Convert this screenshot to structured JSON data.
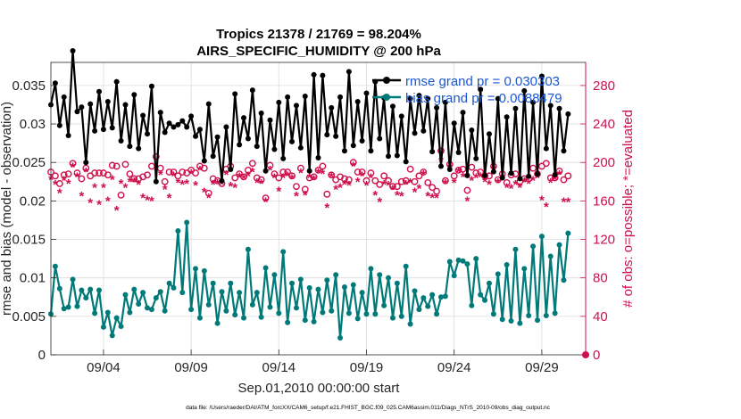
{
  "chart_data": {
    "type": "line",
    "title_line1": "Tropics 21378 / 21769 = 98.204%",
    "title_line2": "AIRS_SPECIFIC_HUMIDITY @ 200 hPa",
    "xlabel": "Sep.01,2010 00:00:00 start",
    "ylabel_left": "rmse and bias (model - observation)",
    "ylabel_right": "# of obs: o=possible; *=evaluated",
    "footnote": "data file: /Users/raeder/DAI/ATM_forcXX/CAM6_setup/f.e21.FHIST_BGC.f09_025.CAM6assim.011/Diags_NTrS_2010-09/obs_diag_output.nc",
    "xlim": [
      1,
      31.5
    ],
    "ylim_left": [
      0,
      0.038
    ],
    "ylim_right": [
      0,
      304
    ],
    "x_ticks": [
      {
        "x": 4,
        "label": "09/04"
      },
      {
        "x": 9,
        "label": "09/09"
      },
      {
        "x": 14,
        "label": "09/14"
      },
      {
        "x": 19,
        "label": "09/19"
      },
      {
        "x": 24,
        "label": "09/24"
      },
      {
        "x": 29,
        "label": "09/29"
      }
    ],
    "y_ticks_left": [
      {
        "v": 0,
        "label": "0"
      },
      {
        "v": 0.005,
        "label": "0.005"
      },
      {
        "v": 0.01,
        "label": "0.01"
      },
      {
        "v": 0.015,
        "label": "0.015"
      },
      {
        "v": 0.02,
        "label": "0.02"
      },
      {
        "v": 0.025,
        "label": "0.025"
      },
      {
        "v": 0.03,
        "label": "0.03"
      },
      {
        "v": 0.035,
        "label": "0.035"
      }
    ],
    "y_ticks_right": [
      {
        "v": 0,
        "label": "0"
      },
      {
        "v": 40,
        "label": "40"
      },
      {
        "v": 80,
        "label": "80"
      },
      {
        "v": 120,
        "label": "120"
      },
      {
        "v": 160,
        "label": "160"
      },
      {
        "v": 200,
        "label": "200"
      },
      {
        "v": 240,
        "label": "240"
      },
      {
        "v": 280,
        "label": "280"
      }
    ],
    "x_start": 1.0,
    "x_step": 0.25,
    "series": [
      {
        "name": "rmse grand pr = 0.030303",
        "color": "#000000",
        "axis": "left",
        "values": [
          0.0325,
          0.0353,
          0.0298,
          0.0335,
          0.0285,
          0.0395,
          0.0316,
          0.0322,
          0.025,
          0.0326,
          0.0291,
          0.0342,
          0.0293,
          0.0329,
          0.0295,
          0.0355,
          0.0278,
          0.0325,
          0.0271,
          0.0338,
          0.0268,
          0.0311,
          0.0287,
          0.0349,
          0.0225,
          0.0315,
          0.0289,
          0.0301,
          0.0296,
          0.0299,
          0.0304,
          0.0296,
          0.031,
          0.0284,
          0.0293,
          0.0252,
          0.0326,
          0.0258,
          0.0283,
          0.0226,
          0.0296,
          0.0241,
          0.0339,
          0.0273,
          0.0308,
          0.0281,
          0.0344,
          0.0271,
          0.0314,
          0.0239,
          0.0305,
          0.0267,
          0.0328,
          0.0255,
          0.0335,
          0.0277,
          0.0324,
          0.0269,
          0.0336,
          0.0239,
          0.0364,
          0.0256,
          0.0363,
          0.0286,
          0.0321,
          0.0284,
          0.0335,
          0.0265,
          0.0368,
          0.0272,
          0.0329,
          0.0278,
          0.034,
          0.0265,
          0.0355,
          0.0281,
          0.0334,
          0.0258,
          0.0323,
          0.0259,
          0.031,
          0.0251,
          0.0333,
          0.0288,
          0.0337,
          0.0291,
          0.0333,
          0.0264,
          0.0321,
          0.0245,
          0.0328,
          0.0241,
          0.0301,
          0.0263,
          0.0315,
          0.0233,
          0.0292,
          0.0255,
          0.0345,
          0.0233,
          0.0287,
          0.0238,
          0.0333,
          0.023,
          0.0309,
          0.0236,
          0.032,
          0.0229,
          0.0343,
          0.0232,
          0.0328,
          0.0235,
          0.0362,
          0.0268,
          0.0324,
          0.0234,
          0.032,
          0.0265,
          0.0313
        ]
      },
      {
        "name": "bias grand pr = 0.0088479",
        "color": "#007a78",
        "axis": "left",
        "values": [
          0.0053,
          0.0115,
          0.0086,
          0.006,
          0.0062,
          0.0098,
          0.0063,
          0.0084,
          0.0074,
          0.0085,
          0.0054,
          0.0084,
          0.0036,
          0.0055,
          0.0025,
          0.0048,
          0.0037,
          0.0078,
          0.0055,
          0.0085,
          0.0066,
          0.0081,
          0.0061,
          0.0059,
          0.0074,
          0.0082,
          0.0057,
          0.0093,
          0.0087,
          0.0161,
          0.0081,
          0.0172,
          0.0059,
          0.0112,
          0.0048,
          0.0109,
          0.0065,
          0.0093,
          0.0041,
          0.0082,
          0.0057,
          0.0093,
          0.0052,
          0.0081,
          0.0048,
          0.0137,
          0.0065,
          0.0081,
          0.0049,
          0.0113,
          0.0062,
          0.0104,
          0.0054,
          0.0134,
          0.0042,
          0.0093,
          0.0061,
          0.0098,
          0.0045,
          0.0087,
          0.0043,
          0.0085,
          0.0055,
          0.0097,
          0.0057,
          0.0104,
          0.0022,
          0.0088,
          0.0054,
          0.0091,
          0.0047,
          0.0081,
          0.0053,
          0.0112,
          0.0053,
          0.0104,
          0.0064,
          0.01,
          0.0048,
          0.0093,
          0.005,
          0.0115,
          0.004,
          0.0083,
          0.0059,
          0.0074,
          0.0063,
          0.0078,
          0.0053,
          0.0075,
          0.0076,
          0.0121,
          0.0103,
          0.0123,
          0.0122,
          0.0118,
          0.0064,
          0.0125,
          0.0078,
          0.0071,
          0.0093,
          0.0053,
          0.0105,
          0.0046,
          0.0117,
          0.0044,
          0.0137,
          0.0041,
          0.0112,
          0.0051,
          0.0141,
          0.0045,
          0.0154,
          0.0051,
          0.0128,
          0.0054,
          0.0143,
          0.0097,
          0.0158
        ]
      }
    ],
    "obs_counts": {
      "color": "#d0104c",
      "axis": "right",
      "possible": [
        190,
        186,
        178,
        187,
        188,
        199,
        189,
        183,
        194,
        186,
        189,
        189,
        189,
        187,
        197,
        196,
        166,
        198,
        188,
        183,
        183,
        185,
        187,
        196,
        206,
        194,
        180,
        190,
        190,
        186,
        190,
        189,
        192,
        189,
        196,
        194,
        168,
        183,
        181,
        178,
        193,
        196,
        184,
        188,
        185,
        192,
        199,
        184,
        182,
        163,
        197,
        188,
        184,
        190,
        190,
        186,
        175,
        194,
        172,
        184,
        185,
        192,
        196,
        167,
        187,
        182,
        185,
        183,
        182,
        200,
        190,
        190,
        181,
        189,
        181,
        177,
        186,
        181,
        175,
        175,
        180,
        181,
        193,
        180,
        186,
        190,
        179,
        174,
        170,
        212,
        181,
        198,
        186,
        192,
        193,
        171,
        195,
        189,
        190,
        186,
        186,
        196,
        182,
        188,
        179,
        187,
        188,
        180,
        183,
        183,
        194,
        188,
        196,
        199,
        184,
        184,
        191,
        182,
        186
      ],
      "evaluated": [
        182,
        177,
        168,
        181,
        178,
        195,
        185,
        165,
        190,
        158,
        174,
        156,
        174,
        160,
        182,
        150,
        178,
        174,
        180,
        180,
        177,
        163,
        161,
        160,
        192,
        187,
        172,
        163,
        186,
        179,
        177,
        178,
        188,
        176,
        192,
        169,
        163,
        177,
        178,
        177,
        187,
        175,
        174,
        185,
        183,
        186,
        190,
        179,
        178,
        159,
        192,
        184,
        170,
        184,
        186,
        183,
        165,
        189,
        166,
        184,
        182,
        189,
        188,
        153,
        185,
        172,
        174,
        177,
        176,
        196,
        180,
        186,
        176,
        184,
        166,
        159,
        177,
        176,
        172,
        166,
        165,
        177,
        179,
        169,
        173,
        187,
        165,
        163,
        163,
        201,
        178,
        194,
        179,
        190,
        185,
        160,
        181,
        184,
        185,
        180,
        177,
        193,
        179,
        184,
        174,
        173,
        177,
        174,
        180,
        178,
        181,
        184,
        161,
        154,
        179,
        182,
        187,
        159,
        159
      ]
    }
  }
}
